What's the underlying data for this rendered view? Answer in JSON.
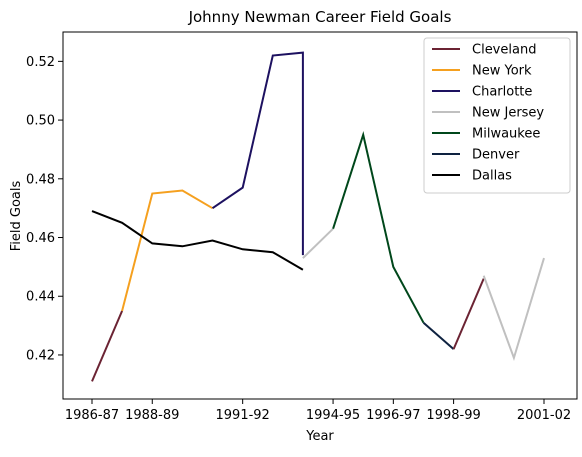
{
  "chart_data": {
    "type": "line",
    "title": "Johnny Newman Career Field Goals",
    "xlabel": "Year",
    "ylabel": "Field Goals",
    "x_tick_labels": [
      "1986-87",
      "1988-89",
      "1991-92",
      "1994-95",
      "1996-97",
      "1998-99",
      "2001-02"
    ],
    "y_tick_labels": [
      "0.42",
      "0.44",
      "0.46",
      "0.48",
      "0.50",
      "0.52"
    ],
    "ylim": [
      0.405,
      0.53
    ],
    "grid": false,
    "legend_position": "top-right",
    "series": [
      {
        "name": "Cleveland",
        "color": "#6b2333",
        "points": [
          {
            "x": "1986-87",
            "y": 0.411
          },
          {
            "x": "1987-88",
            "y": 0.435
          }
        ]
      },
      {
        "name": "New York",
        "color": "#f5a01f",
        "points": [
          {
            "x": "1987-88",
            "y": 0.435
          },
          {
            "x": "1988-89",
            "y": 0.475
          },
          {
            "x": "1989-90",
            "y": 0.476
          },
          {
            "x": "1990-91",
            "y": 0.47
          }
        ]
      },
      {
        "name": "Charlotte",
        "color": "#1d1160",
        "points": [
          {
            "x": "1990-91",
            "y": 0.47
          },
          {
            "x": "1991-92",
            "y": 0.477
          },
          {
            "x": "1992-93",
            "y": 0.522
          },
          {
            "x": "1993-94",
            "y": 0.523
          },
          {
            "x": "1993-94",
            "y": 0.454
          }
        ]
      },
      {
        "name": "New Jersey",
        "color": "#c0c0c0",
        "points": [
          {
            "x": "1993-94",
            "y": 0.453
          },
          {
            "x": "1994-95",
            "y": 0.463
          }
        ]
      },
      {
        "name": "Milwaukee",
        "color": "#00471b",
        "points": [
          {
            "x": "1994-95",
            "y": 0.463
          },
          {
            "x": "1995-96",
            "y": 0.495
          },
          {
            "x": "1996-97",
            "y": 0.45
          },
          {
            "x": "1997-98",
            "y": 0.431
          }
        ]
      },
      {
        "name": "Denver",
        "color": "#0e2240",
        "points": [
          {
            "x": "1997-98",
            "y": 0.431
          },
          {
            "x": "1998-99",
            "y": 0.422
          }
        ]
      },
      {
        "name": "Cleveland",
        "color": "#6b2333",
        "points": [
          {
            "x": "1998-99",
            "y": 0.422
          },
          {
            "x": "1999-00",
            "y": 0.446
          }
        ]
      },
      {
        "name": "New Jersey",
        "color": "#c0c0c0",
        "points": [
          {
            "x": "1999-00",
            "y": 0.447
          },
          {
            "x": "2000-01",
            "y": 0.419
          },
          {
            "x": "2001-02",
            "y": 0.453
          }
        ]
      },
      {
        "name": "Dallas",
        "color": "#000000",
        "points": [
          {
            "x": "1986-87",
            "y": 0.469
          },
          {
            "x": "1987-88",
            "y": 0.465
          },
          {
            "x": "1988-89",
            "y": 0.458
          },
          {
            "x": "1989-90",
            "y": 0.457
          },
          {
            "x": "1990-91",
            "y": 0.459
          },
          {
            "x": "1991-92",
            "y": 0.456
          },
          {
            "x": "1992-93",
            "y": 0.455
          },
          {
            "x": "1993-94",
            "y": 0.449
          }
        ]
      }
    ],
    "legend": [
      {
        "name": "Cleveland",
        "color": "#6b2333"
      },
      {
        "name": "New York",
        "color": "#f5a01f"
      },
      {
        "name": "Charlotte",
        "color": "#1d1160"
      },
      {
        "name": "New Jersey",
        "color": "#c0c0c0"
      },
      {
        "name": "Milwaukee",
        "color": "#00471b"
      },
      {
        "name": "Denver",
        "color": "#0e2240"
      },
      {
        "name": "Dallas",
        "color": "#000000"
      }
    ]
  }
}
